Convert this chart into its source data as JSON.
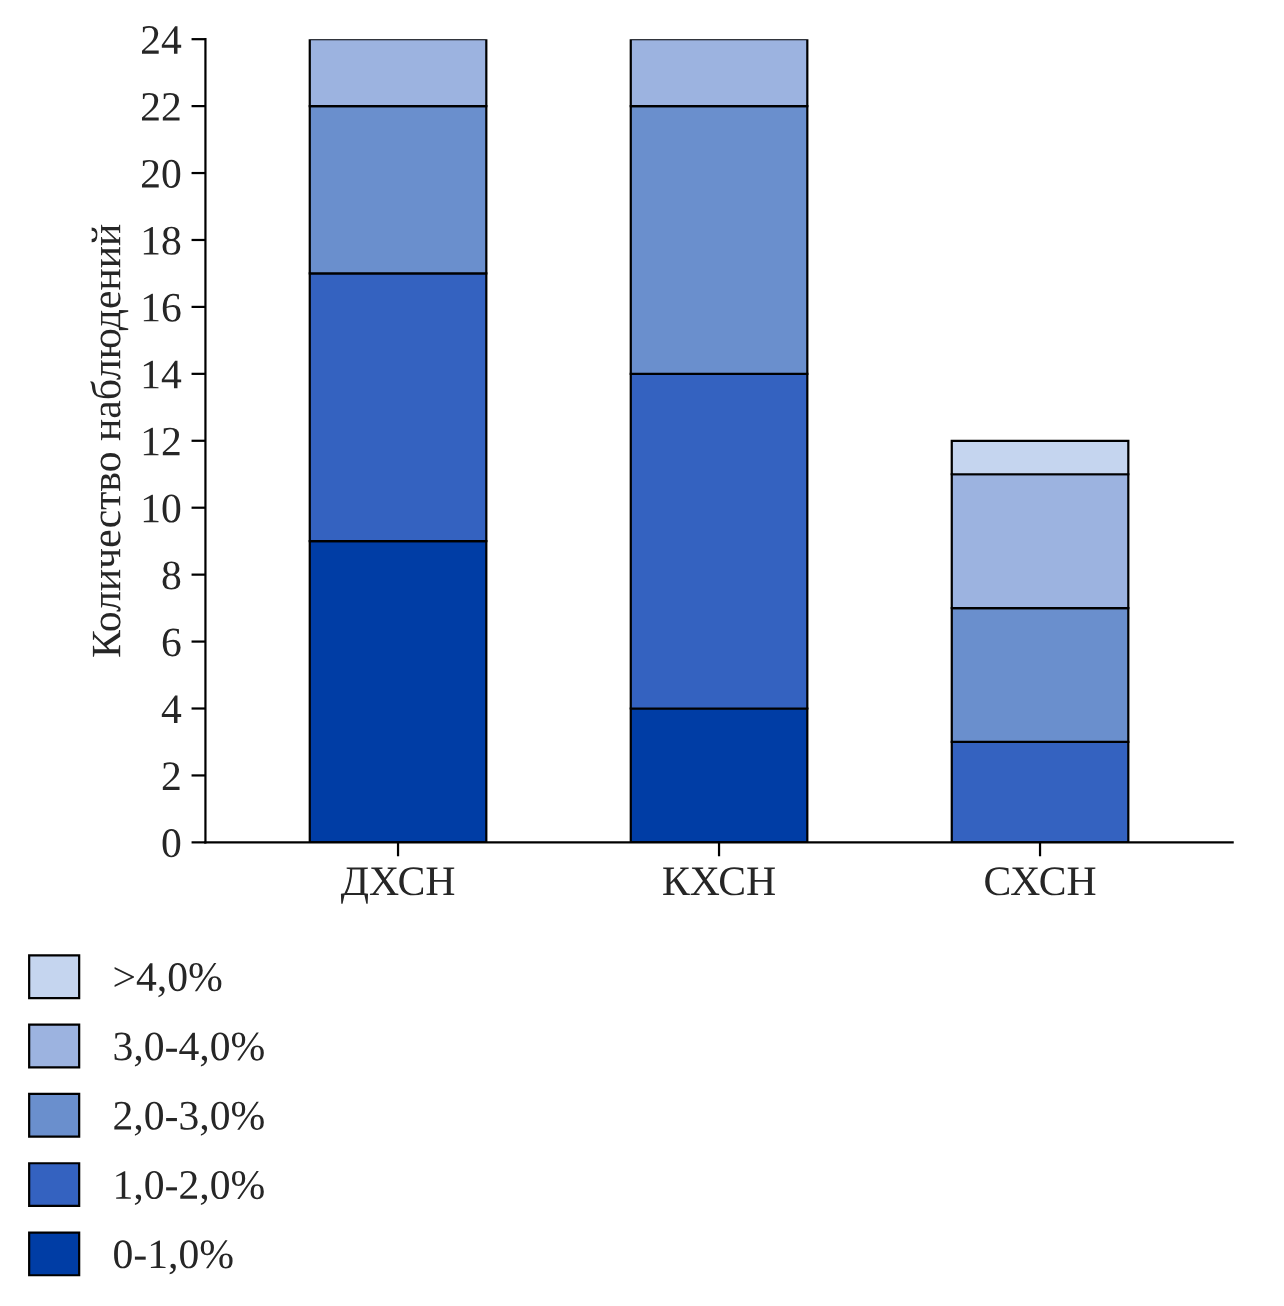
{
  "chart_data": {
    "type": "bar",
    "stacked": true,
    "ylabel": "Количество наблюдений",
    "categories": [
      "ДХСН",
      "КХСН",
      "СХСН"
    ],
    "series": [
      {
        "name": "0-1,0%",
        "color": "#003da5",
        "values": [
          9,
          4,
          0
        ]
      },
      {
        "name": "1,0-2,0%",
        "color": "#3462c0",
        "values": [
          8,
          10,
          3
        ]
      },
      {
        "name": "2,0-3,0%",
        "color": "#6a8fcd",
        "values": [
          5,
          8,
          4
        ]
      },
      {
        "name": "3,0-4,0%",
        "color": "#9cb3e0",
        "values": [
          2,
          2,
          4
        ]
      },
      {
        "name": ">4,0%",
        "color": "#c5d5ef",
        "values": [
          0,
          0,
          1
        ]
      }
    ],
    "ylim": [
      0,
      24
    ],
    "yticks": [
      0,
      2,
      4,
      6,
      8,
      10,
      12,
      14,
      16,
      18,
      20,
      22,
      24
    ],
    "grid": false,
    "legend": "bottom left"
  }
}
